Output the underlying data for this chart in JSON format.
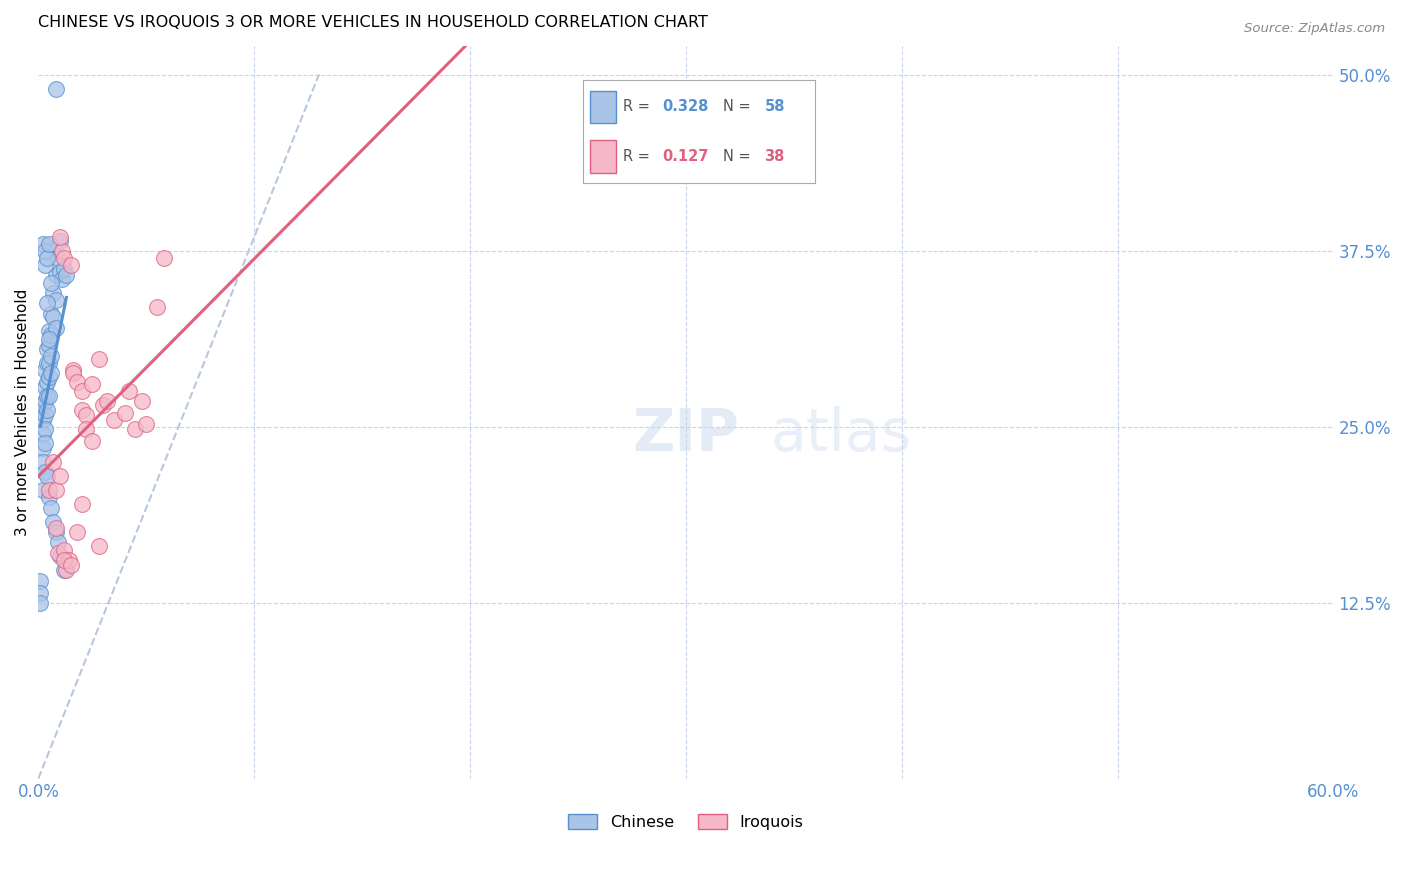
{
  "title": "CHINESE VS IROQUOIS 3 OR MORE VEHICLES IN HOUSEHOLD CORRELATION CHART",
  "source": "Source: ZipAtlas.com",
  "ylabel": "3 or more Vehicles in Household",
  "xlim": [
    0.0,
    0.6
  ],
  "ylim": [
    0.0,
    0.52
  ],
  "color_chinese": "#aac4e8",
  "color_iroquois": "#f5b8c8",
  "color_line_chinese": "#5590d0",
  "color_line_iroquois": "#e06080",
  "color_diagonal": "#b8c8dc",
  "chinese_x": [
    0.002,
    0.002,
    0.002,
    0.002,
    0.002,
    0.002,
    0.003,
    0.003,
    0.003,
    0.003,
    0.003,
    0.003,
    0.003,
    0.004,
    0.004,
    0.004,
    0.004,
    0.004,
    0.004,
    0.005,
    0.005,
    0.005,
    0.005,
    0.005,
    0.005,
    0.006,
    0.006,
    0.006,
    0.006,
    0.006,
    0.007,
    0.007,
    0.007,
    0.008,
    0.008,
    0.008,
    0.008,
    0.009,
    0.009,
    0.01,
    0.01,
    0.01,
    0.011,
    0.012,
    0.012,
    0.013,
    0.003,
    0.004,
    0.005,
    0.006,
    0.002,
    0.003,
    0.004,
    0.005,
    0.001,
    0.001,
    0.001,
    0.008
  ],
  "chinese_y": [
    0.265,
    0.255,
    0.245,
    0.235,
    0.225,
    0.205,
    0.29,
    0.278,
    0.268,
    0.258,
    0.248,
    0.238,
    0.218,
    0.305,
    0.295,
    0.282,
    0.272,
    0.262,
    0.215,
    0.318,
    0.308,
    0.295,
    0.285,
    0.272,
    0.2,
    0.33,
    0.315,
    0.3,
    0.288,
    0.192,
    0.345,
    0.328,
    0.182,
    0.358,
    0.34,
    0.32,
    0.175,
    0.37,
    0.168,
    0.382,
    0.36,
    0.158,
    0.355,
    0.362,
    0.148,
    0.358,
    0.365,
    0.338,
    0.312,
    0.352,
    0.38,
    0.375,
    0.37,
    0.38,
    0.14,
    0.132,
    0.125,
    0.49
  ],
  "iroquois_x": [
    0.005,
    0.007,
    0.008,
    0.008,
    0.009,
    0.01,
    0.011,
    0.012,
    0.012,
    0.013,
    0.014,
    0.015,
    0.016,
    0.016,
    0.018,
    0.018,
    0.02,
    0.02,
    0.022,
    0.022,
    0.025,
    0.028,
    0.028,
    0.03,
    0.032,
    0.035,
    0.04,
    0.042,
    0.045,
    0.048,
    0.05,
    0.055,
    0.058,
    0.01,
    0.012,
    0.015,
    0.02,
    0.025
  ],
  "iroquois_y": [
    0.205,
    0.225,
    0.205,
    0.178,
    0.16,
    0.215,
    0.375,
    0.37,
    0.162,
    0.148,
    0.155,
    0.365,
    0.29,
    0.288,
    0.282,
    0.175,
    0.275,
    0.262,
    0.258,
    0.248,
    0.28,
    0.298,
    0.165,
    0.265,
    0.268,
    0.255,
    0.26,
    0.275,
    0.248,
    0.268,
    0.252,
    0.335,
    0.37,
    0.385,
    0.155,
    0.152,
    0.195,
    0.24
  ]
}
